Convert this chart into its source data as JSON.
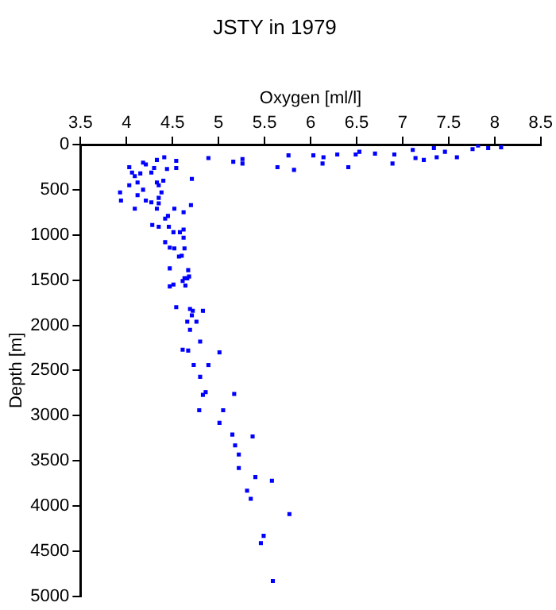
{
  "chart_data": {
    "type": "scatter",
    "title": "JSTY in 1979",
    "xlabel": "Oxygen [ml/l]",
    "ylabel": "Depth [m]",
    "xlim": [
      3.5,
      8.5
    ],
    "xticks": [
      3.5,
      4,
      4.5,
      5,
      5.5,
      6,
      6.5,
      7,
      7.5,
      8,
      8.5
    ],
    "ylim": [
      5000,
      0
    ],
    "yticks": [
      0,
      500,
      1000,
      1500,
      2000,
      2500,
      3000,
      3500,
      4000,
      4500,
      5000
    ],
    "grid": false,
    "legend": false,
    "marker": "square",
    "series": [
      {
        "color": "#0000ff",
        "x": [
          8.07,
          7.93,
          7.82,
          7.76,
          7.59,
          7.46,
          7.37,
          7.34,
          7.23,
          7.14,
          7.11,
          6.91,
          6.89,
          6.7,
          6.53,
          6.49,
          6.41,
          6.29,
          6.14,
          6.13,
          6.03,
          5.82,
          5.76,
          5.64,
          5.26,
          5.26,
          5.16,
          4.89,
          4.71,
          4.7,
          4.62,
          4.62,
          4.62,
          4.63,
          4.6,
          4.67,
          4.63,
          4.47,
          4.54,
          4.54,
          4.44,
          4.41,
          4.4,
          4.35,
          4.33,
          4.33,
          4.3,
          4.27,
          4.21,
          4.18,
          4.15,
          4.12,
          4.09,
          4.06,
          4.03,
          4.03,
          3.94,
          3.93,
          4.09,
          4.12,
          4.18,
          4.21,
          4.27,
          4.33,
          4.35,
          4.38,
          4.35,
          4.52,
          4.45,
          4.42,
          4.28,
          4.35,
          4.46,
          4.51,
          4.58,
          4.42,
          4.47,
          4.52,
          4.57,
          4.47,
          4.61,
          4.68,
          4.66,
          4.51,
          4.64,
          4.54,
          4.69,
          4.72,
          4.83,
          4.71,
          4.66,
          4.76,
          4.69,
          4.8,
          4.61,
          4.67,
          5.01,
          4.73,
          4.89,
          4.8,
          4.86,
          4.83,
          5.17,
          4.79,
          5.05,
          5.01,
          5.15,
          5.37,
          5.18,
          5.22,
          5.22,
          5.4,
          5.58,
          5.31,
          5.35,
          5.77,
          5.49,
          5.46,
          5.59
        ],
        "values": [
          30,
          40,
          10,
          50,
          140,
          80,
          140,
          40,
          170,
          150,
          60,
          110,
          210,
          100,
          80,
          110,
          250,
          110,
          140,
          210,
          120,
          280,
          120,
          250,
          160,
          210,
          190,
          150,
          380,
          670,
          750,
          940,
          1030,
          1150,
          1230,
          1390,
          1480,
          1570,
          260,
          180,
          270,
          140,
          400,
          450,
          420,
          170,
          260,
          310,
          220,
          200,
          320,
          420,
          350,
          310,
          250,
          450,
          620,
          530,
          710,
          560,
          500,
          620,
          640,
          710,
          650,
          530,
          590,
          710,
          790,
          820,
          890,
          910,
          910,
          970,
          970,
          1080,
          1140,
          1150,
          1240,
          1370,
          1510,
          1460,
          1480,
          1550,
          1560,
          1800,
          1820,
          1840,
          1840,
          1890,
          1960,
          1960,
          2050,
          2180,
          2270,
          2280,
          2300,
          2440,
          2440,
          2570,
          2740,
          2770,
          2760,
          2940,
          2940,
          3080,
          3210,
          3230,
          3330,
          3430,
          3580,
          3680,
          3720,
          3830,
          3920,
          4090,
          4330,
          4410,
          4830
        ]
      }
    ]
  }
}
